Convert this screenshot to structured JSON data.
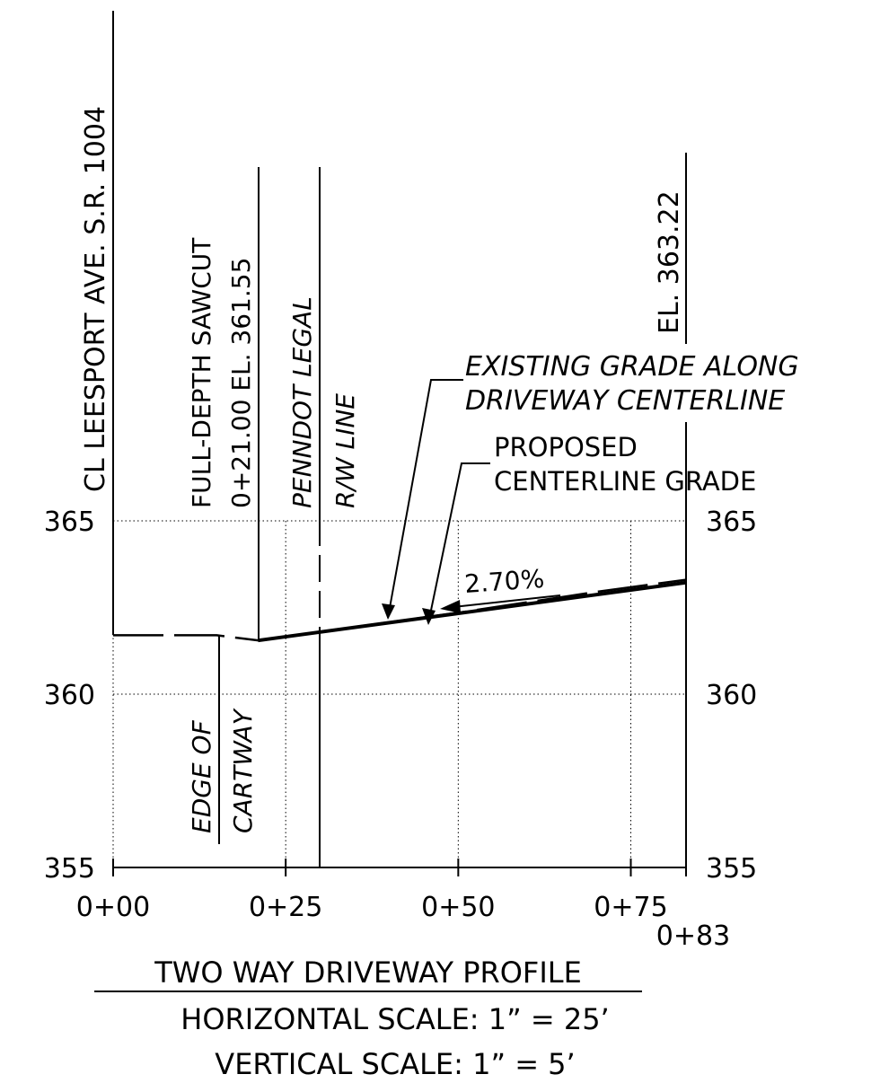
{
  "profile": {
    "title": "TWO WAY DRIVEWAY PROFILE",
    "horizontal_scale": "HORIZONTAL SCALE:  1”  =  25’",
    "vertical_scale": "VERTICAL SCALE:  1”  =  5’"
  },
  "labels": {
    "road_centerline": "CL LEESPORT AVE. S.R. 1004",
    "sawcut_line1": "FULL-DEPTH SAWCUT",
    "sawcut_line2": "0+21.00  EL. 361.55",
    "row_line1": "PENNDOT LEGAL",
    "row_line2": "R/W LINE",
    "end_elevation": "EL. 363.22",
    "existing_grade_line1": "EXISTING GRADE ALONG",
    "existing_grade_line2": "DRIVEWAY CENTERLINE",
    "proposed_grade_line1": "PROPOSED",
    "proposed_grade_line2": "CENTERLINE  GRADE",
    "edge_line1": "EDGE OF",
    "edge_line2": "CARTWAY",
    "slope": "2.70%"
  },
  "chart_data": {
    "type": "line",
    "xlabel": "",
    "ylabel": "",
    "x_ticks": [
      "0+00",
      "0+25",
      "0+50",
      "0+75",
      "0+83"
    ],
    "y_ticks": [
      "355",
      "360",
      "365"
    ],
    "xlim": [
      0,
      83
    ],
    "ylim": [
      355,
      365
    ],
    "grid": true,
    "series": [
      {
        "name": "PROPOSED CENTERLINE GRADE",
        "style": "solid",
        "x": [
          21,
          83
        ],
        "y": [
          361.55,
          363.22
        ]
      },
      {
        "name": "EXISTING GRADE ALONG DRIVEWAY CENTERLINE",
        "style": "dashed",
        "x": [
          0,
          15,
          21,
          30,
          50,
          70,
          83
        ],
        "y": [
          361.7,
          361.7,
          361.55,
          361.8,
          362.35,
          362.95,
          363.3
        ]
      }
    ]
  }
}
